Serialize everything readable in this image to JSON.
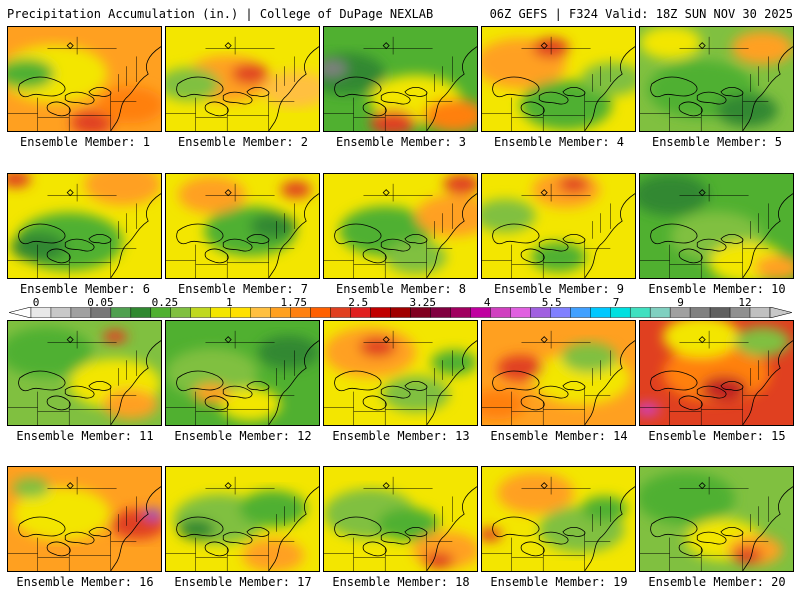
{
  "header": {
    "title": "Precipitation Accumulation (in.) | College of DuPage NEXLAB",
    "run_info": "06Z GEFS | F324 Valid: 18Z SUN NOV 30 2025"
  },
  "panels": [
    {
      "label": "Ensemble Member: 1",
      "base": "#ffa020",
      "blobs": [
        [
          "#f3e600",
          0.3,
          0.45,
          0.35
        ],
        [
          "#50b030",
          0.12,
          0.45,
          0.18
        ],
        [
          "#e04020",
          0.55,
          0.92,
          0.14
        ],
        [
          "#ff8010",
          0.8,
          0.75,
          0.22
        ]
      ]
    },
    {
      "label": "Ensemble Member: 2",
      "base": "#f3e600",
      "blobs": [
        [
          "#ffa020",
          0.4,
          0.5,
          0.28
        ],
        [
          "#80c040",
          0.15,
          0.55,
          0.2
        ],
        [
          "#e04020",
          0.55,
          0.45,
          0.12
        ],
        [
          "#ffc040",
          0.85,
          0.6,
          0.22
        ]
      ]
    },
    {
      "label": "Ensemble Member: 3",
      "base": "#50b030",
      "blobs": [
        [
          "#308830",
          0.15,
          0.45,
          0.25
        ],
        [
          "#808080",
          0.05,
          0.4,
          0.1
        ],
        [
          "#f3e600",
          0.6,
          0.7,
          0.3
        ],
        [
          "#e04020",
          0.45,
          0.92,
          0.15
        ],
        [
          "#ff8010",
          0.85,
          0.85,
          0.2
        ]
      ]
    },
    {
      "label": "Ensemble Member: 4",
      "base": "#f3e600",
      "blobs": [
        [
          "#ffa020",
          0.25,
          0.35,
          0.3
        ],
        [
          "#e04020",
          0.45,
          0.2,
          0.12
        ],
        [
          "#50b030",
          0.55,
          0.75,
          0.3
        ],
        [
          "#80c040",
          0.85,
          0.5,
          0.2
        ]
      ]
    },
    {
      "label": "Ensemble Member: 5",
      "base": "#80c040",
      "blobs": [
        [
          "#50b030",
          0.4,
          0.6,
          0.35
        ],
        [
          "#f3e600",
          0.2,
          0.15,
          0.2
        ],
        [
          "#ffa020",
          0.8,
          0.2,
          0.2
        ],
        [
          "#308830",
          0.7,
          0.8,
          0.2
        ]
      ]
    },
    {
      "label": "Ensemble Member: 6",
      "base": "#f3e600",
      "blobs": [
        [
          "#50b030",
          0.4,
          0.65,
          0.35
        ],
        [
          "#ffa020",
          0.75,
          0.1,
          0.25
        ],
        [
          "#308830",
          0.2,
          0.7,
          0.18
        ],
        [
          "#e04020",
          0.05,
          0.05,
          0.1
        ]
      ]
    },
    {
      "label": "Ensemble Member: 7",
      "base": "#f3e600",
      "blobs": [
        [
          "#50b030",
          0.55,
          0.55,
          0.3
        ],
        [
          "#ffa020",
          0.3,
          0.2,
          0.22
        ],
        [
          "#308830",
          0.7,
          0.5,
          0.15
        ],
        [
          "#e04020",
          0.85,
          0.15,
          0.1
        ]
      ]
    },
    {
      "label": "Ensemble Member: 8",
      "base": "#f3e600",
      "blobs": [
        [
          "#50b030",
          0.4,
          0.55,
          0.3
        ],
        [
          "#ffa020",
          0.85,
          0.4,
          0.25
        ],
        [
          "#e04020",
          0.9,
          0.1,
          0.12
        ],
        [
          "#80c040",
          0.6,
          0.8,
          0.2
        ]
      ]
    },
    {
      "label": "Ensemble Member: 9",
      "base": "#f3e600",
      "blobs": [
        [
          "#ffa020",
          0.55,
          0.15,
          0.22
        ],
        [
          "#e04020",
          0.6,
          0.1,
          0.1
        ],
        [
          "#80c040",
          0.15,
          0.4,
          0.2
        ],
        [
          "#50b030",
          0.5,
          0.8,
          0.18
        ]
      ]
    },
    {
      "label": "Ensemble Member: 10",
      "base": "#50b030",
      "blobs": [
        [
          "#308830",
          0.2,
          0.2,
          0.25
        ],
        [
          "#80c040",
          0.5,
          0.6,
          0.3
        ],
        [
          "#f3e600",
          0.7,
          0.85,
          0.25
        ],
        [
          "#ffa020",
          0.9,
          0.9,
          0.15
        ]
      ]
    },
    {
      "label": "Ensemble Member: 11",
      "base": "#80c040",
      "blobs": [
        [
          "#50b030",
          0.25,
          0.3,
          0.3
        ],
        [
          "#f3e600",
          0.7,
          0.6,
          0.3
        ],
        [
          "#ffa020",
          0.8,
          0.8,
          0.18
        ],
        [
          "#e04020",
          0.7,
          0.15,
          0.08
        ]
      ]
    },
    {
      "label": "Ensemble Member: 12",
      "base": "#50b030",
      "blobs": [
        [
          "#80c040",
          0.3,
          0.5,
          0.3
        ],
        [
          "#308830",
          0.8,
          0.3,
          0.2
        ],
        [
          "#f3e600",
          0.55,
          0.8,
          0.2
        ],
        [
          "#ffa020",
          0.3,
          0.7,
          0.12
        ]
      ]
    },
    {
      "label": "Ensemble Member: 13",
      "base": "#f3e600",
      "blobs": [
        [
          "#ffa020",
          0.3,
          0.3,
          0.3
        ],
        [
          "#e04020",
          0.35,
          0.25,
          0.12
        ],
        [
          "#80c040",
          0.6,
          0.7,
          0.22
        ],
        [
          "#50b030",
          0.85,
          0.4,
          0.15
        ]
      ]
    },
    {
      "label": "Ensemble Member: 14",
      "base": "#ffa020",
      "blobs": [
        [
          "#f3e600",
          0.65,
          0.55,
          0.32
        ],
        [
          "#e04020",
          0.25,
          0.45,
          0.15
        ],
        [
          "#80c040",
          0.7,
          0.35,
          0.18
        ],
        [
          "#ff8010",
          0.1,
          0.8,
          0.18
        ]
      ]
    },
    {
      "label": "Ensemble Member: 15",
      "base": "#e04020",
      "blobs": [
        [
          "#ff8010",
          0.5,
          0.5,
          0.35
        ],
        [
          "#f3e600",
          0.4,
          0.15,
          0.25
        ],
        [
          "#80c040",
          0.8,
          0.2,
          0.18
        ],
        [
          "#d040c0",
          0.05,
          0.85,
          0.08
        ],
        [
          "#c02020",
          0.55,
          0.65,
          0.15
        ]
      ]
    },
    {
      "label": "Ensemble Member: 16",
      "base": "#ffa020",
      "blobs": [
        [
          "#f3e600",
          0.35,
          0.45,
          0.32
        ],
        [
          "#e04020",
          0.85,
          0.55,
          0.18
        ],
        [
          "#8050d0",
          0.95,
          0.45,
          0.06
        ],
        [
          "#80c040",
          0.15,
          0.2,
          0.12
        ]
      ]
    },
    {
      "label": "Ensemble Member: 17",
      "base": "#f3e600",
      "blobs": [
        [
          "#80c040",
          0.35,
          0.5,
          0.3
        ],
        [
          "#50b030",
          0.7,
          0.4,
          0.22
        ],
        [
          "#ffa020",
          0.7,
          0.85,
          0.2
        ],
        [
          "#308830",
          0.2,
          0.6,
          0.12
        ]
      ]
    },
    {
      "label": "Ensemble Member: 18",
      "base": "#f3e600",
      "blobs": [
        [
          "#80c040",
          0.3,
          0.45,
          0.3
        ],
        [
          "#50b030",
          0.55,
          0.55,
          0.2
        ],
        [
          "#ffa020",
          0.8,
          0.8,
          0.22
        ],
        [
          "#e04020",
          0.75,
          0.9,
          0.1
        ]
      ]
    },
    {
      "label": "Ensemble Member: 19",
      "base": "#f3e600",
      "blobs": [
        [
          "#ffa020",
          0.35,
          0.25,
          0.25
        ],
        [
          "#80c040",
          0.65,
          0.6,
          0.28
        ],
        [
          "#50b030",
          0.8,
          0.4,
          0.15
        ],
        [
          "#e04020",
          0.05,
          0.65,
          0.08
        ]
      ]
    },
    {
      "label": "Ensemble Member: 20",
      "base": "#80c040",
      "blobs": [
        [
          "#50b030",
          0.3,
          0.3,
          0.32
        ],
        [
          "#f3e600",
          0.55,
          0.7,
          0.25
        ],
        [
          "#ffa020",
          0.75,
          0.8,
          0.18
        ],
        [
          "#e04020",
          0.7,
          0.85,
          0.1
        ]
      ]
    }
  ],
  "colorbar": {
    "labels": [
      {
        "text": "0",
        "frac": 0.0
      },
      {
        "text": "0.05",
        "frac": 0.0909
      },
      {
        "text": "0.25",
        "frac": 0.1818
      },
      {
        "text": "1",
        "frac": 0.2727
      },
      {
        "text": "1.75",
        "frac": 0.3636
      },
      {
        "text": "2.5",
        "frac": 0.4545
      },
      {
        "text": "3.25",
        "frac": 0.5455
      },
      {
        "text": "4",
        "frac": 0.6364
      },
      {
        "text": "5.5",
        "frac": 0.7273
      },
      {
        "text": "7",
        "frac": 0.8182
      },
      {
        "text": "9",
        "frac": 0.9091
      },
      {
        "text": "12",
        "frac": 1.0
      }
    ],
    "colors": [
      "#e8e8e8",
      "#c8c8c8",
      "#a0a0a0",
      "#787878",
      "#50a050",
      "#308830",
      "#50b030",
      "#80c040",
      "#c0d820",
      "#f3e600",
      "#ffe000",
      "#ffc040",
      "#ffa020",
      "#ff8010",
      "#ff6000",
      "#e04020",
      "#e02020",
      "#c00000",
      "#a00000",
      "#800020",
      "#800040",
      "#a00060",
      "#c000a0",
      "#d040c0",
      "#e060e0",
      "#a060e0",
      "#8080ff",
      "#40a0ff",
      "#00c8ff",
      "#00e0e0",
      "#40e0c0",
      "#80d0c0",
      "#a0a0a0",
      "#808080",
      "#606060",
      "#909090",
      "#c0c0c0"
    ]
  }
}
